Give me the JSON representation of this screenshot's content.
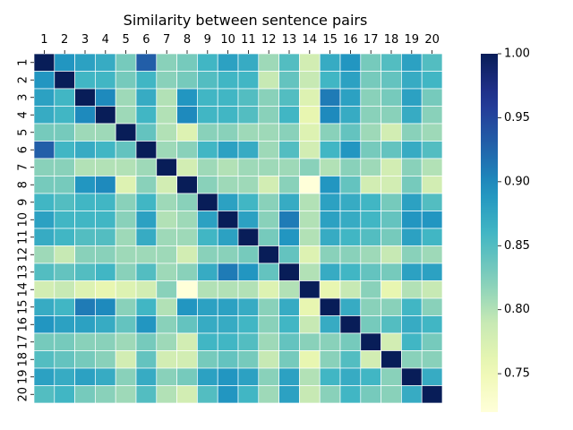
{
  "chart_data": {
    "type": "heatmap",
    "title": "Similarity between sentence pairs",
    "x_labels": [
      "1",
      "2",
      "3",
      "4",
      "5",
      "6",
      "7",
      "8",
      "9",
      "10",
      "11",
      "12",
      "13",
      "14",
      "15",
      "16",
      "17",
      "18",
      "19",
      "20"
    ],
    "y_labels": [
      "1",
      "2",
      "3",
      "4",
      "5",
      "6",
      "7",
      "8",
      "9",
      "10",
      "11",
      "12",
      "13",
      "14",
      "15",
      "16",
      "17",
      "18",
      "19",
      "20"
    ],
    "x_axis_position": "top",
    "colormap": "YlGnBu",
    "vmin": 0.72,
    "vmax": 1.0,
    "colorbar": {
      "ticks": [
        0.75,
        0.8,
        0.85,
        0.9,
        0.95,
        1.0
      ],
      "tick_labels": [
        "0.75",
        "0.80",
        "0.85",
        "0.90",
        "0.95",
        "1.00"
      ],
      "position": "right"
    },
    "cell_border_color": "#ffffff",
    "values": [
      [
        1.0,
        0.89,
        0.88,
        0.87,
        0.83,
        0.93,
        0.82,
        0.83,
        0.86,
        0.88,
        0.87,
        0.81,
        0.85,
        0.78,
        0.87,
        0.89,
        0.83,
        0.85,
        0.88,
        0.85
      ],
      [
        0.89,
        1.0,
        0.86,
        0.86,
        0.83,
        0.86,
        0.82,
        0.83,
        0.85,
        0.86,
        0.86,
        0.79,
        0.84,
        0.79,
        0.86,
        0.88,
        0.83,
        0.84,
        0.87,
        0.86
      ],
      [
        0.88,
        0.86,
        1.0,
        0.9,
        0.81,
        0.87,
        0.8,
        0.89,
        0.86,
        0.86,
        0.85,
        0.82,
        0.85,
        0.77,
        0.91,
        0.88,
        0.82,
        0.83,
        0.88,
        0.83
      ],
      [
        0.87,
        0.86,
        0.9,
        1.0,
        0.81,
        0.86,
        0.8,
        0.9,
        0.86,
        0.86,
        0.85,
        0.82,
        0.86,
        0.76,
        0.9,
        0.87,
        0.82,
        0.82,
        0.87,
        0.82
      ],
      [
        0.83,
        0.83,
        0.81,
        0.81,
        1.0,
        0.84,
        0.8,
        0.77,
        0.82,
        0.82,
        0.81,
        0.81,
        0.82,
        0.77,
        0.82,
        0.84,
        0.81,
        0.78,
        0.82,
        0.81
      ],
      [
        0.93,
        0.86,
        0.87,
        0.86,
        0.84,
        1.0,
        0.81,
        0.82,
        0.86,
        0.88,
        0.87,
        0.81,
        0.85,
        0.78,
        0.86,
        0.89,
        0.83,
        0.84,
        0.87,
        0.85
      ],
      [
        0.82,
        0.82,
        0.8,
        0.8,
        0.8,
        0.81,
        1.0,
        0.78,
        0.81,
        0.8,
        0.81,
        0.81,
        0.81,
        0.82,
        0.8,
        0.82,
        0.81,
        0.78,
        0.82,
        0.8
      ],
      [
        0.83,
        0.83,
        0.89,
        0.9,
        0.77,
        0.82,
        0.78,
        1.0,
        0.82,
        0.81,
        0.81,
        0.78,
        0.82,
        0.72,
        0.89,
        0.84,
        0.78,
        0.78,
        0.83,
        0.78
      ],
      [
        0.86,
        0.85,
        0.86,
        0.86,
        0.82,
        0.86,
        0.81,
        0.82,
        1.0,
        0.88,
        0.86,
        0.82,
        0.87,
        0.8,
        0.88,
        0.87,
        0.86,
        0.83,
        0.88,
        0.85
      ],
      [
        0.88,
        0.86,
        0.86,
        0.86,
        0.82,
        0.88,
        0.8,
        0.81,
        0.88,
        1.0,
        0.88,
        0.82,
        0.91,
        0.8,
        0.88,
        0.87,
        0.86,
        0.84,
        0.89,
        0.89
      ],
      [
        0.87,
        0.86,
        0.85,
        0.85,
        0.81,
        0.87,
        0.81,
        0.81,
        0.86,
        0.88,
        1.0,
        0.83,
        0.89,
        0.8,
        0.87,
        0.86,
        0.85,
        0.83,
        0.88,
        0.86
      ],
      [
        0.81,
        0.79,
        0.82,
        0.82,
        0.81,
        0.81,
        0.81,
        0.78,
        0.82,
        0.82,
        0.83,
        1.0,
        0.84,
        0.77,
        0.82,
        0.82,
        0.81,
        0.79,
        0.82,
        0.81
      ],
      [
        0.85,
        0.84,
        0.85,
        0.86,
        0.82,
        0.85,
        0.81,
        0.82,
        0.87,
        0.91,
        0.89,
        0.84,
        1.0,
        0.8,
        0.87,
        0.86,
        0.84,
        0.83,
        0.88,
        0.88
      ],
      [
        0.78,
        0.79,
        0.77,
        0.76,
        0.77,
        0.78,
        0.82,
        0.72,
        0.8,
        0.8,
        0.8,
        0.77,
        0.8,
        1.0,
        0.76,
        0.79,
        0.82,
        0.76,
        0.8,
        0.79
      ],
      [
        0.87,
        0.86,
        0.91,
        0.9,
        0.82,
        0.86,
        0.8,
        0.89,
        0.88,
        0.88,
        0.87,
        0.82,
        0.87,
        0.76,
        1.0,
        0.87,
        0.82,
        0.82,
        0.86,
        0.82
      ],
      [
        0.89,
        0.88,
        0.88,
        0.87,
        0.84,
        0.89,
        0.82,
        0.84,
        0.87,
        0.87,
        0.86,
        0.82,
        0.86,
        0.79,
        0.87,
        1.0,
        0.83,
        0.85,
        0.87,
        0.86
      ],
      [
        0.83,
        0.83,
        0.82,
        0.82,
        0.81,
        0.83,
        0.81,
        0.78,
        0.86,
        0.86,
        0.85,
        0.81,
        0.84,
        0.82,
        0.82,
        0.83,
        1.0,
        0.78,
        0.86,
        0.83
      ],
      [
        0.85,
        0.84,
        0.83,
        0.82,
        0.78,
        0.84,
        0.78,
        0.78,
        0.83,
        0.84,
        0.83,
        0.79,
        0.83,
        0.76,
        0.82,
        0.85,
        0.78,
        1.0,
        0.82,
        0.82
      ],
      [
        0.88,
        0.87,
        0.88,
        0.87,
        0.82,
        0.87,
        0.82,
        0.83,
        0.88,
        0.89,
        0.88,
        0.82,
        0.88,
        0.8,
        0.86,
        0.87,
        0.86,
        0.82,
        1.0,
        0.87
      ],
      [
        0.85,
        0.86,
        0.83,
        0.82,
        0.81,
        0.85,
        0.8,
        0.78,
        0.85,
        0.89,
        0.86,
        0.81,
        0.88,
        0.79,
        0.82,
        0.86,
        0.83,
        0.82,
        0.87,
        1.0
      ]
    ]
  }
}
